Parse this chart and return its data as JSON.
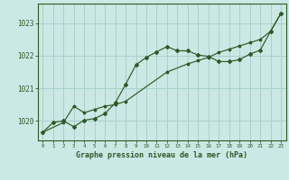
{
  "title": "Graphe pression niveau de la mer (hPa)",
  "background_color": "#cce8e4",
  "grid_color": "#a8d0cb",
  "line_color": "#2d5a27",
  "xlim": [
    -0.5,
    23.5
  ],
  "ylim": [
    1019.4,
    1023.6
  ],
  "yticks": [
    1020,
    1021,
    1022,
    1023
  ],
  "xticks": [
    0,
    1,
    2,
    3,
    4,
    5,
    6,
    7,
    8,
    9,
    10,
    11,
    12,
    13,
    14,
    15,
    16,
    17,
    18,
    19,
    20,
    21,
    22,
    23
  ],
  "series1_x": [
    0,
    1,
    2,
    3,
    4,
    5,
    6,
    7,
    8,
    9,
    10,
    11,
    12,
    13,
    14,
    15,
    16,
    17,
    18,
    19,
    20,
    21,
    22,
    23
  ],
  "series1_y": [
    1019.65,
    1019.95,
    1020.0,
    1019.82,
    1020.02,
    1020.07,
    1020.22,
    1020.55,
    1021.12,
    1021.72,
    1021.95,
    1022.12,
    1022.28,
    1022.15,
    1022.15,
    1022.02,
    1021.98,
    1021.82,
    1021.82,
    1021.88,
    1022.05,
    1022.17,
    1022.75,
    1023.3
  ],
  "series2_x": [
    0,
    2,
    3,
    4,
    5,
    6,
    7,
    8,
    12,
    14,
    15,
    16,
    17,
    18,
    19,
    20,
    21,
    22,
    23
  ],
  "series2_y": [
    1019.65,
    1019.95,
    1020.45,
    1020.25,
    1020.35,
    1020.45,
    1020.5,
    1020.6,
    1021.5,
    1021.75,
    1021.85,
    1021.95,
    1022.1,
    1022.2,
    1022.3,
    1022.4,
    1022.5,
    1022.75,
    1023.3
  ]
}
